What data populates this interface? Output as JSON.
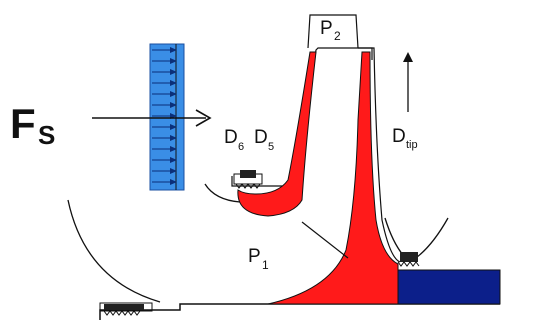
{
  "labels": {
    "force": "F",
    "force_sub": "S",
    "d6": "D",
    "d6_sub": "6",
    "d5": "D",
    "d5_sub": "5",
    "dtip": "D",
    "dtip_sub": "tip",
    "p1": "P",
    "p1_sub": "1",
    "p2": "P",
    "p2_sub": "2"
  },
  "colors": {
    "impeller_red": "#ff1a1a",
    "flow_blue": "#3a8ee6",
    "hub_navy": "#0c1f8a",
    "outline": "#111111"
  },
  "icons": {
    "flow_arrows": "right-arrow-icon",
    "seals": "labyrinth-seal-icon"
  }
}
